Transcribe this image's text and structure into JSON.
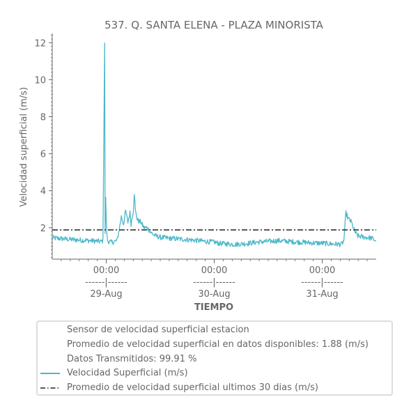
{
  "chart_data": {
    "type": "line",
    "title": "537. Q. SANTA ELENA - PLAZA MINORISTA",
    "xlabel": "TIEMPO",
    "ylabel": "Velocidad superficial (m/s)",
    "ylim": [
      0.3,
      12.5
    ],
    "y_ticks": [
      2,
      4,
      6,
      8,
      10,
      12
    ],
    "x_range_days": [
      0,
      3
    ],
    "x_ticks": [
      {
        "pos": 0.5,
        "time": "00:00",
        "sep": "------|------",
        "date": "29-Aug"
      },
      {
        "pos": 1.5,
        "time": "00:00",
        "sep": "------|------",
        "date": "30-Aug"
      },
      {
        "pos": 2.5,
        "time": "00:00",
        "sep": "------|------",
        "date": "31-Aug"
      }
    ],
    "grid": false,
    "legend_position": "below",
    "series": [
      {
        "name": "Velocidad Superficial (m/s)",
        "color": "#4cb8c8",
        "style": "solid",
        "points": [
          [
            0.0,
            1.45
          ],
          [
            0.1,
            1.4
          ],
          [
            0.2,
            1.35
          ],
          [
            0.3,
            1.32
          ],
          [
            0.4,
            1.28
          ],
          [
            0.45,
            1.25
          ],
          [
            0.47,
            1.3
          ],
          [
            0.485,
            12.0
          ],
          [
            0.49,
            1.6
          ],
          [
            0.495,
            3.7
          ],
          [
            0.5,
            2.3
          ],
          [
            0.51,
            1.3
          ],
          [
            0.55,
            1.2
          ],
          [
            0.6,
            1.3
          ],
          [
            0.62,
            1.9
          ],
          [
            0.64,
            2.6
          ],
          [
            0.66,
            2.2
          ],
          [
            0.68,
            2.9
          ],
          [
            0.7,
            2.3
          ],
          [
            0.72,
            2.8
          ],
          [
            0.73,
            2.2
          ],
          [
            0.75,
            2.9
          ],
          [
            0.76,
            3.9
          ],
          [
            0.77,
            2.9
          ],
          [
            0.79,
            2.4
          ],
          [
            0.82,
            2.3
          ],
          [
            0.85,
            2.0
          ],
          [
            0.88,
            2.0
          ],
          [
            0.9,
            1.85
          ],
          [
            0.92,
            1.7
          ],
          [
            0.96,
            1.55
          ],
          [
            1.0,
            1.48
          ],
          [
            1.1,
            1.42
          ],
          [
            1.2,
            1.38
          ],
          [
            1.3,
            1.33
          ],
          [
            1.4,
            1.27
          ],
          [
            1.5,
            1.22
          ],
          [
            1.55,
            1.15
          ],
          [
            1.7,
            1.1
          ],
          [
            1.8,
            1.15
          ],
          [
            1.9,
            1.22
          ],
          [
            2.0,
            1.26
          ],
          [
            2.1,
            1.3
          ],
          [
            2.2,
            1.25
          ],
          [
            2.3,
            1.22
          ],
          [
            2.4,
            1.18
          ],
          [
            2.5,
            1.16
          ],
          [
            2.6,
            1.12
          ],
          [
            2.68,
            1.1
          ],
          [
            2.7,
            1.3
          ],
          [
            2.72,
            2.8
          ],
          [
            2.74,
            2.5
          ],
          [
            2.77,
            2.3
          ],
          [
            2.8,
            1.8
          ],
          [
            2.83,
            1.55
          ],
          [
            2.9,
            1.48
          ],
          [
            2.95,
            1.45
          ],
          [
            3.0,
            1.3
          ]
        ]
      },
      {
        "name": "Promedio de velocidad superficial ultimos 30 dias (m/s)",
        "color": "#222222",
        "style": "dashdot",
        "value": 1.88
      }
    ]
  },
  "legend": {
    "line1": "Sensor de velocidad superficial estacion",
    "line2": "Promedio de velocidad superficial en datos disponibles: 1.88 (m/s)",
    "line3": "Datos Transmitidos: 99.91 %",
    "series_label": "Velocidad Superficial (m/s)",
    "avg_label": "Promedio de velocidad superficial ultimos 30 dias (m/s)"
  }
}
